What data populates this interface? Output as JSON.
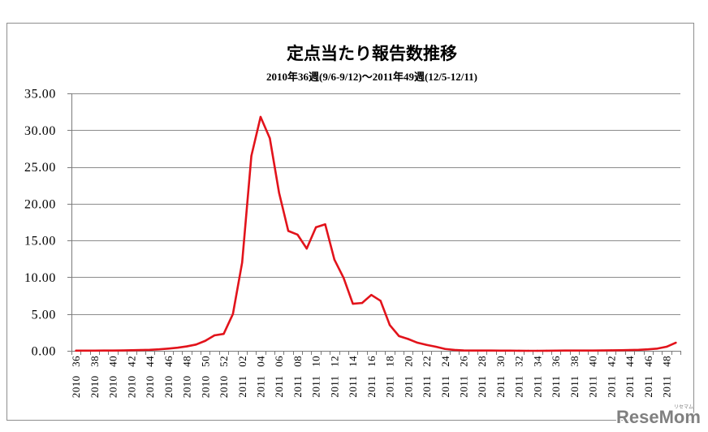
{
  "chart_data": {
    "type": "line",
    "title": "定点当たり報告数推移",
    "subtitle": "2010年36週(9/6-9/12)～2011年49週(12/5-12/11)",
    "ylim": [
      0,
      35
    ],
    "y_ticks": [
      0,
      5,
      10,
      15,
      20,
      25,
      30,
      35
    ],
    "y_tick_labels": [
      "0.00",
      "5.00",
      "10.00",
      "15.00",
      "20.00",
      "25.00",
      "30.00",
      "35.00"
    ],
    "x_tick_label_step": 2,
    "x_tick_labels": [
      "2010 36",
      "2010 38",
      "2010 40",
      "2010 42",
      "2010 44",
      "2010 46",
      "2010 48",
      "2010 50",
      "2010 52",
      "2011 02",
      "2011 04",
      "2011 06",
      "2011 08",
      "2011 10",
      "2011 12",
      "2011 14",
      "2011 16",
      "2011 18",
      "2011 20",
      "2011 22",
      "2011 24",
      "2011 26",
      "2011 28",
      "2011 30",
      "2011 32",
      "2011 34",
      "2011 36",
      "2011 38",
      "2011 40",
      "2011 42",
      "2011 44",
      "2011 46",
      "2011 48"
    ],
    "values": [
      0.02,
      0.02,
      0.02,
      0.03,
      0.03,
      0.05,
      0.08,
      0.1,
      0.13,
      0.2,
      0.3,
      0.42,
      0.6,
      0.85,
      1.35,
      2.1,
      2.3,
      5.0,
      12.0,
      26.5,
      31.8,
      28.9,
      21.5,
      16.3,
      15.8,
      13.9,
      16.8,
      17.2,
      12.4,
      9.9,
      6.4,
      6.5,
      7.6,
      6.8,
      3.5,
      2.0,
      1.6,
      1.1,
      0.8,
      0.55,
      0.25,
      0.12,
      0.05,
      0.04,
      0.03,
      0.03,
      0.02,
      0.02,
      0.01,
      0.0,
      0.0,
      0.01,
      0.02,
      0.03,
      0.04,
      0.04,
      0.04,
      0.05,
      0.06,
      0.08,
      0.1,
      0.13,
      0.2,
      0.3,
      0.55,
      1.1
    ],
    "grid": true
  },
  "watermark": {
    "logo_text": "ReseMom",
    "ruby": "リセマム"
  },
  "colors": {
    "line": "#e2131b",
    "grid": "#8c8c8c",
    "axis": "#7a7a7a",
    "border": "#8e8e8e",
    "text": "#000000",
    "watermark": "#808080",
    "background": "#ffffff"
  }
}
